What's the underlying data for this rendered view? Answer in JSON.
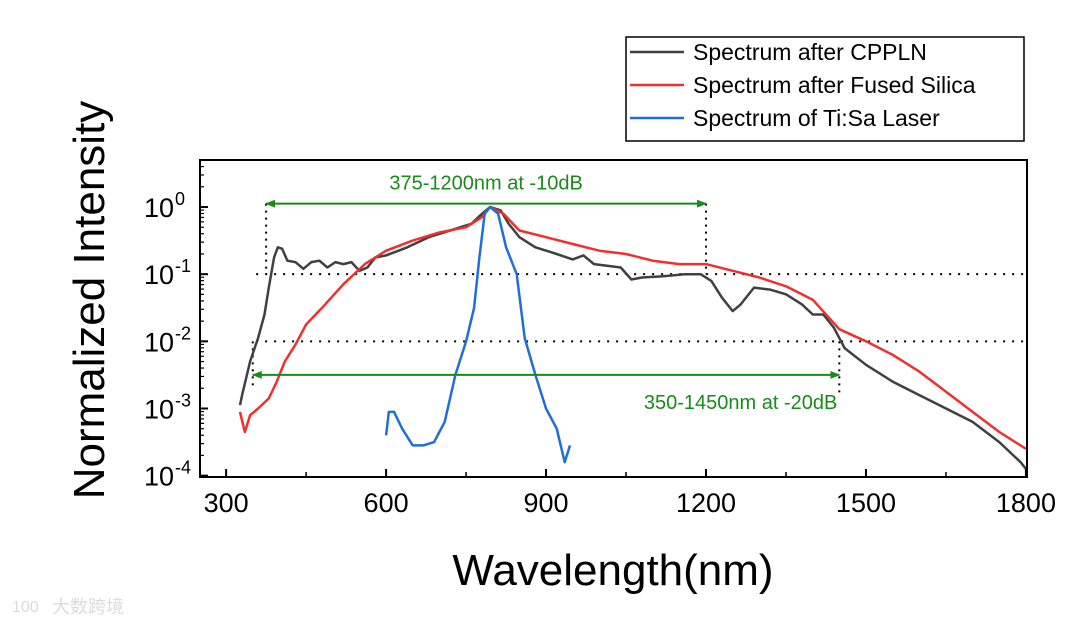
{
  "chart_data": {
    "type": "line",
    "xlabel": "Wavelength(nm)",
    "ylabel": "Normalized Intensity",
    "yscale": "log",
    "xlim": [
      251,
      1802
    ],
    "ylim_log10": [
      -4.02,
      0.7
    ],
    "x_ticks": [
      300,
      600,
      900,
      1200,
      1500,
      1800
    ],
    "y_ticks_log10": [
      0,
      -1,
      -2,
      -3,
      -4
    ],
    "y_tick_base": "10",
    "legend_position": "top-right-outside",
    "series": [
      {
        "name": "Spectrum after CPPLN",
        "color": "#404040",
        "x": [
          326,
          330,
          345,
          360,
          372,
          380,
          390,
          397,
          405,
          415,
          430,
          445,
          460,
          475,
          490,
          505,
          520,
          535,
          550,
          565,
          580,
          600,
          640,
          680,
          720,
          760,
          780,
          795,
          815,
          830,
          850,
          880,
          920,
          950,
          970,
          990,
          1020,
          1040,
          1060,
          1080,
          1120,
          1160,
          1190,
          1210,
          1230,
          1250,
          1265,
          1290,
          1320,
          1350,
          1380,
          1400,
          1420,
          1440,
          1460,
          1500,
          1550,
          1600,
          1650,
          1700,
          1750,
          1790,
          1800
        ],
        "log10_y": [
          -2.95,
          -2.8,
          -2.3,
          -1.95,
          -1.6,
          -1.2,
          -0.75,
          -0.6,
          -0.62,
          -0.8,
          -0.82,
          -0.92,
          -0.82,
          -0.8,
          -0.9,
          -0.82,
          -0.85,
          -0.82,
          -0.95,
          -0.9,
          -0.75,
          -0.72,
          -0.6,
          -0.45,
          -0.35,
          -0.25,
          -0.1,
          0,
          -0.05,
          -0.25,
          -0.45,
          -0.6,
          -0.7,
          -0.78,
          -0.72,
          -0.85,
          -0.88,
          -0.9,
          -1.08,
          -1.05,
          -1.03,
          -1.0,
          -1.0,
          -1.1,
          -1.35,
          -1.55,
          -1.45,
          -1.2,
          -1.23,
          -1.3,
          -1.45,
          -1.6,
          -1.6,
          -1.8,
          -2.1,
          -2.35,
          -2.6,
          -2.8,
          -3.0,
          -3.2,
          -3.5,
          -3.8,
          -3.9
        ]
      },
      {
        "name": "Spectrum after Fused Silica",
        "color": "#ee3030",
        "x": [
          326,
          335,
          345,
          360,
          380,
          395,
          410,
          430,
          450,
          480,
          520,
          560,
          600,
          650,
          700,
          750,
          780,
          795,
          820,
          850,
          900,
          950,
          1000,
          1050,
          1100,
          1150,
          1200,
          1250,
          1300,
          1350,
          1400,
          1450,
          1500,
          1550,
          1600,
          1650,
          1700,
          1750,
          1800
        ],
        "log10_y": [
          -3.05,
          -3.35,
          -3.1,
          -3.0,
          -2.85,
          -2.6,
          -2.3,
          -2.05,
          -1.75,
          -1.5,
          -1.15,
          -0.85,
          -0.65,
          -0.5,
          -0.38,
          -0.3,
          -0.15,
          0,
          -0.1,
          -0.35,
          -0.45,
          -0.55,
          -0.65,
          -0.7,
          -0.8,
          -0.85,
          -0.85,
          -0.95,
          -1.05,
          -1.18,
          -1.38,
          -1.82,
          -2.0,
          -2.2,
          -2.45,
          -2.75,
          -3.05,
          -3.35,
          -3.6
        ]
      },
      {
        "name": "Spectrum of Ti:Sa Laser",
        "color": "#1f6fd6",
        "x": [
          600,
          605,
          615,
          630,
          650,
          670,
          690,
          710,
          730,
          750,
          765,
          775,
          785,
          795,
          810,
          825,
          845,
          860,
          880,
          900,
          920,
          935,
          945
        ],
        "log10_y": [
          -3.4,
          -3.05,
          -3.05,
          -3.3,
          -3.55,
          -3.55,
          -3.5,
          -3.2,
          -2.5,
          -2.0,
          -1.5,
          -0.75,
          -0.1,
          0,
          -0.1,
          -0.6,
          -1.0,
          -1.95,
          -2.5,
          -3.0,
          -3.3,
          -3.8,
          -3.55
        ]
      }
    ],
    "reference_lines_log10": [
      -1,
      -2
    ],
    "annotations": [
      {
        "text": "375-1200nm at -10dB",
        "x_range": [
          375,
          1200
        ],
        "log10_y": 0.05,
        "color": "#1a8a1a"
      },
      {
        "text": "350-1450nm at -20dB",
        "x_range": [
          350,
          1450
        ],
        "log10_y": -2.5,
        "color": "#1a8a1a"
      }
    ]
  },
  "watermark": {
    "text": "大数跨境",
    "logo": "100"
  }
}
